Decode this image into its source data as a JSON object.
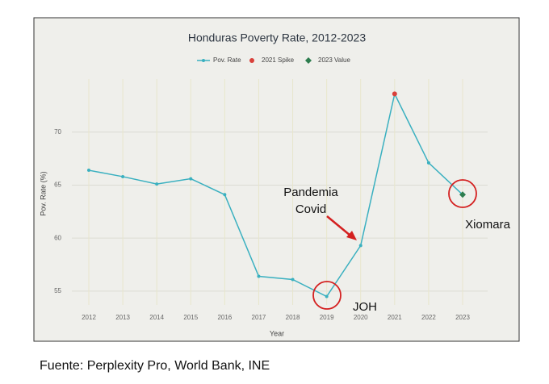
{
  "chart_data": {
    "type": "line",
    "title": "Honduras Poverty Rate, 2012-2023",
    "x_label": "Year",
    "y_label": "Pov. Rate (%)",
    "categories": [
      "2012",
      "2013",
      "2014",
      "2015",
      "2016",
      "2017",
      "2018",
      "2019",
      "2020",
      "2021",
      "2022",
      "2023"
    ],
    "series": [
      {
        "name": "Pov. Rate",
        "color": "#3ab0c0",
        "marker": "circle",
        "values": [
          66.4,
          65.8,
          65.1,
          65.6,
          64.1,
          56.4,
          56.1,
          54.5,
          59.3,
          73.6,
          67.1,
          64.1
        ]
      },
      {
        "name": "2021 Spike",
        "color": "#d9403a",
        "marker": "circle",
        "values": [
          null,
          null,
          null,
          null,
          null,
          null,
          null,
          null,
          null,
          73.6,
          null,
          null
        ]
      },
      {
        "name": "2023 Value",
        "color": "#2e7d4f",
        "marker": "diamond",
        "values": [
          null,
          null,
          null,
          null,
          null,
          null,
          null,
          null,
          null,
          null,
          null,
          64.1
        ]
      }
    ],
    "ylim": [
      53.7,
      75
    ],
    "yticks": [
      55,
      60,
      65,
      70
    ],
    "grid": true,
    "legend": "top",
    "annotations": [
      "Pandemia",
      "Covid",
      "JOH",
      "Xiomara"
    ],
    "source": "Fuente: Perplexity Pro, World Bank, INE"
  }
}
